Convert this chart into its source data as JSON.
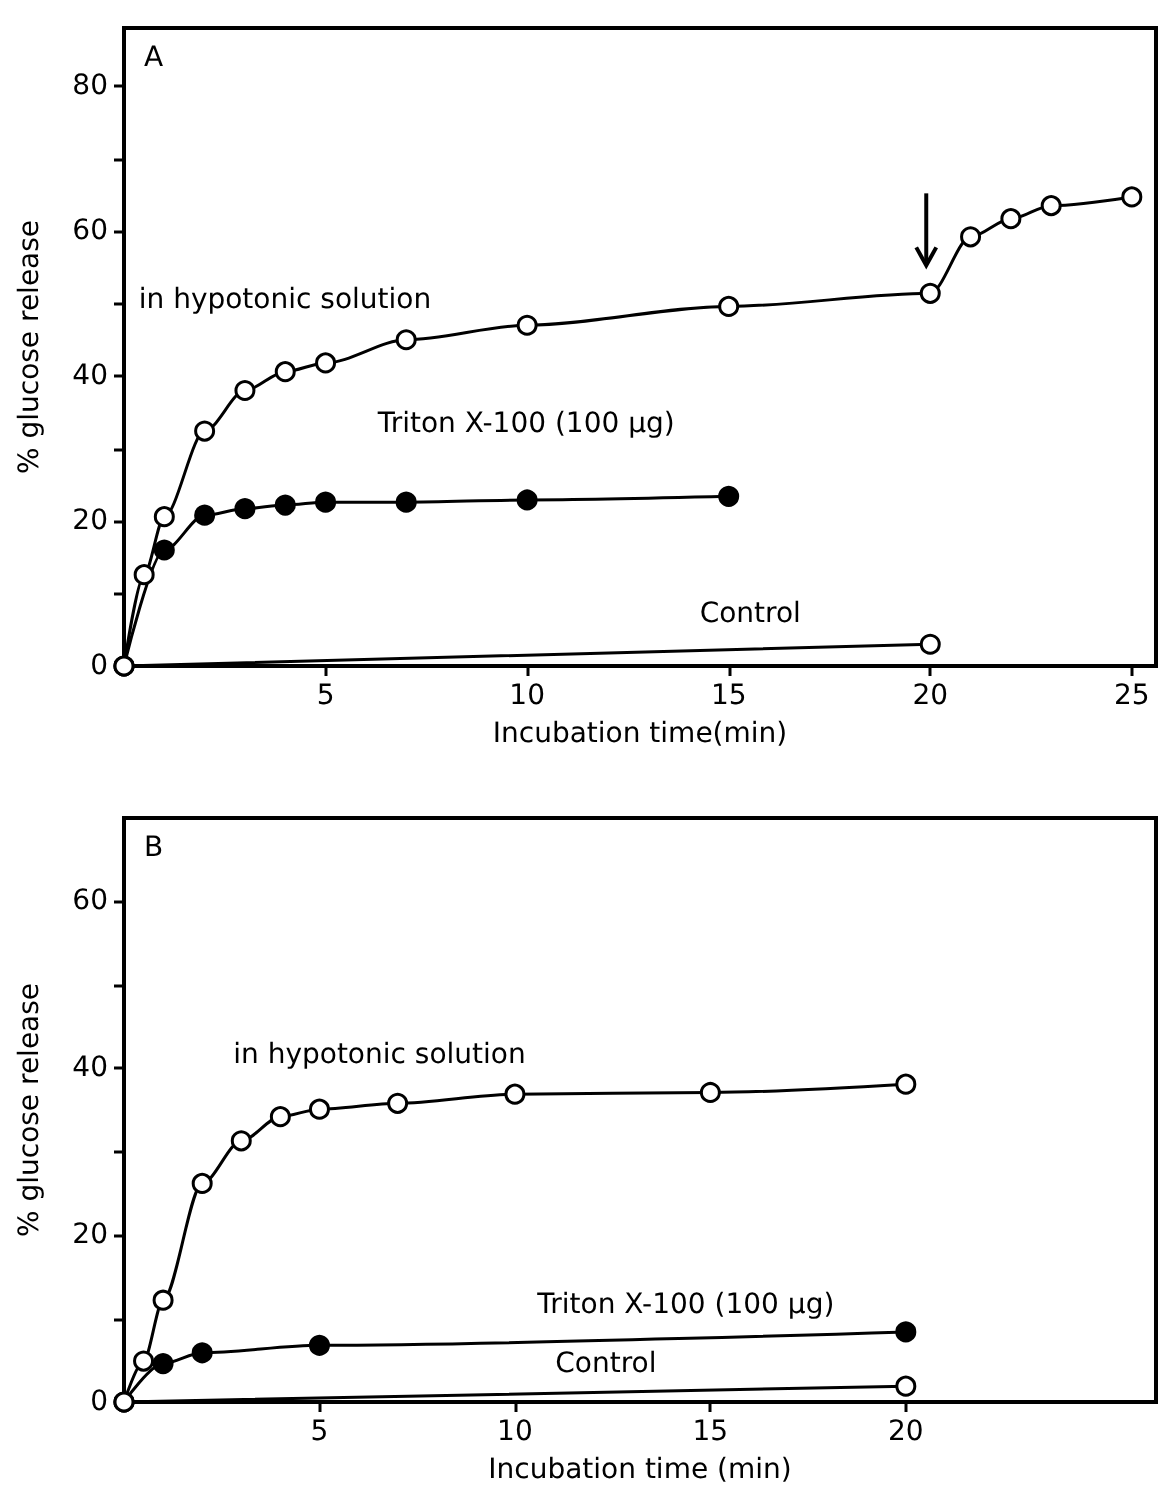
{
  "chart_data": [
    {
      "type": "line",
      "xlabel": "Incubation time(min)",
      "ylabel": "% glucose release",
      "annotations": [
        "A"
      ],
      "marker": "circle",
      "line_style": "solid",
      "grid": false,
      "xlim": [
        0,
        25.6
      ],
      "xticks": [
        5,
        10,
        15,
        20,
        25
      ],
      "ylim": [
        0,
        88
      ],
      "yticks": [
        0,
        {
          "value": 10,
          "label": null
        },
        20,
        {
          "value": 30,
          "label": null
        },
        40,
        {
          "value": 50,
          "label": null
        },
        60,
        {
          "value": 70,
          "label": null
        },
        80
      ],
      "series": [
        {
          "name": "in hypotonic solution",
          "color": "#000000",
          "x": [
            0,
            0.5,
            1,
            2,
            3,
            4,
            5,
            7,
            10,
            15,
            20,
            21,
            22,
            23,
            25
          ],
          "values": [
            0,
            12.6,
            20.6,
            32.4,
            38,
            40.6,
            41.8,
            45,
            47,
            49.6,
            51.4,
            59.2,
            61.7,
            63.5,
            64.7
          ]
        },
        {
          "name": "Triton X-100 (100 µg)",
          "color": "#000000",
          "x": [
            0,
            1,
            2,
            3,
            4,
            5,
            7,
            10,
            15
          ],
          "values": [
            0,
            16,
            20.8,
            21.7,
            22.2,
            22.6,
            22.6,
            22.9,
            23.4
          ]
        },
        {
          "name": "Control",
          "color": "#000000",
          "x": [
            0,
            20
          ],
          "values": [
            0,
            3
          ]
        }
      ]
    },
    {
      "type": "line",
      "xlabel": "Incubation time (min)",
      "ylabel": "% glucose release",
      "annotations": [
        "B"
      ],
      "marker": "circle",
      "line_style": "solid",
      "grid": false,
      "xlim": [
        0,
        26.4
      ],
      "xticks": [
        5,
        10,
        15,
        20
      ],
      "ylim": [
        0,
        70
      ],
      "yticks": [
        0,
        {
          "value": 10,
          "label": null
        },
        20,
        {
          "value": 30,
          "label": null
        },
        40,
        {
          "value": 50,
          "label": null
        },
        60
      ],
      "series": [
        {
          "name": "in hypotonic solution",
          "color": "#000000",
          "x": [
            0,
            0.5,
            1,
            2,
            3,
            4,
            5,
            7,
            10,
            15,
            20
          ],
          "values": [
            0,
            4.9,
            12.2,
            26.2,
            31.3,
            34.2,
            35.1,
            35.8,
            36.9,
            37.1,
            38.1
          ]
        },
        {
          "name": "Triton X-100 (100 µg)",
          "color": "#000000",
          "x": [
            0,
            1,
            2,
            5,
            20
          ],
          "values": [
            0,
            4.6,
            5.9,
            6.8,
            8.4
          ]
        },
        {
          "name": "Control",
          "color": "#000000",
          "x": [
            0,
            20
          ],
          "values": [
            0,
            1.9
          ]
        }
      ]
    }
  ]
}
